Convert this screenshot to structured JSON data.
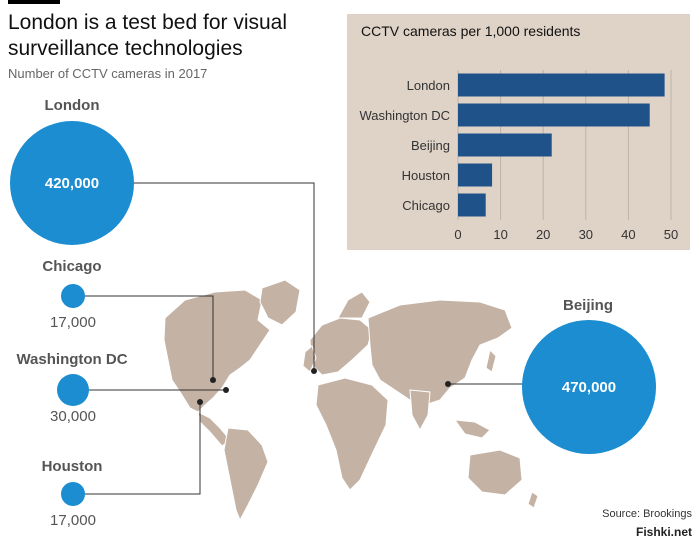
{
  "header": {
    "title": "London is a test bed for visual surveillance technologies",
    "subtitle": "Number of CCTV cameras in 2017"
  },
  "cities": {
    "london": {
      "label": "London",
      "value": "420,000"
    },
    "chicago": {
      "label": "Chicago",
      "value": "17,000"
    },
    "washington": {
      "label": "Washington DC",
      "value": "30,000"
    },
    "houston": {
      "label": "Houston",
      "value": "17,000"
    },
    "beijing": {
      "label": "Beijing",
      "value": "470,000"
    }
  },
  "chart_data": {
    "type": "bar",
    "orientation": "horizontal",
    "title": "CCTV cameras per 1,000 residents",
    "categories": [
      "London",
      "Washington DC",
      "Beijing",
      "Houston",
      "Chicago"
    ],
    "values": [
      48.5,
      45,
      22,
      8,
      6.5
    ],
    "xlim": [
      0,
      50
    ],
    "xticks": [
      0,
      10,
      20,
      30,
      40,
      50
    ],
    "grid": true,
    "bar_color": "#1f5288"
  },
  "footer": {
    "source": "Source: Brookings",
    "watermark": "Fishki.net"
  },
  "colors": {
    "bubble": "#1b8dd0",
    "map": "#c4b2a4",
    "panel_bg": "#dfd3c8",
    "bar": "#1f5288"
  }
}
